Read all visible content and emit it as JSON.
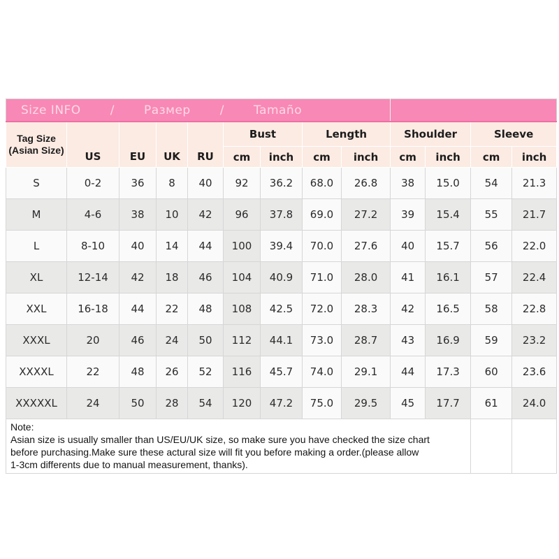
{
  "chart_data": {
    "type": "table",
    "title": "Size INFO / Размер / Tamaño",
    "columns": [
      "Tag Size (Asian Size)",
      "US",
      "EU",
      "UK",
      "RU",
      "Bust cm",
      "Bust inch",
      "Length cm",
      "Length inch",
      "Shoulder cm",
      "Shoulder inch",
      "Sleeve cm",
      "Sleeve inch"
    ],
    "rows": [
      [
        "S",
        "0-2",
        "36",
        "8",
        "40",
        "92",
        "36.2",
        "68.0",
        "26.8",
        "38",
        "15.0",
        "54",
        "21.3"
      ],
      [
        "M",
        "4-6",
        "38",
        "10",
        "42",
        "96",
        "37.8",
        "69.0",
        "27.2",
        "39",
        "15.4",
        "55",
        "21.7"
      ],
      [
        "L",
        "8-10",
        "40",
        "14",
        "44",
        "100",
        "39.4",
        "70.0",
        "27.6",
        "40",
        "15.7",
        "56",
        "22.0"
      ],
      [
        "XL",
        "12-14",
        "42",
        "18",
        "46",
        "104",
        "40.9",
        "71.0",
        "28.0",
        "41",
        "16.1",
        "57",
        "22.4"
      ],
      [
        "XXL",
        "16-18",
        "44",
        "22",
        "48",
        "108",
        "42.5",
        "72.0",
        "28.3",
        "42",
        "16.5",
        "58",
        "22.8"
      ],
      [
        "XXXL",
        "20",
        "46",
        "24",
        "50",
        "112",
        "44.1",
        "73.0",
        "28.7",
        "43",
        "16.9",
        "59",
        "23.2"
      ],
      [
        "XXXXL",
        "22",
        "48",
        "26",
        "52",
        "116",
        "45.7",
        "74.0",
        "29.1",
        "44",
        "17.3",
        "60",
        "23.6"
      ],
      [
        "XXXXXL",
        "24",
        "50",
        "28",
        "54",
        "120",
        "47.2",
        "75.0",
        "29.5",
        "45",
        "17.7",
        "61",
        "24.0"
      ]
    ]
  },
  "banner": {
    "parts": [
      "Size INFO",
      "/",
      "Размер",
      "/",
      "Tamaño"
    ]
  },
  "header": {
    "tag_size_line1": "Tag Size",
    "tag_size_line2": "(Asian Size)",
    "size_systems": [
      "US",
      "EU",
      "UK",
      "RU"
    ],
    "measure_groups": [
      {
        "label": "Bust",
        "units": [
          "cm",
          "inch"
        ]
      },
      {
        "label": "Length",
        "units": [
          "cm",
          "inch"
        ]
      },
      {
        "label": "Shoulder",
        "units": [
          "cm",
          "inch"
        ]
      },
      {
        "label": "Sleeve",
        "units": [
          "cm",
          "inch"
        ]
      }
    ]
  },
  "note": {
    "lines": [
      "Note:",
      "Asian size is usually smaller than US/EU/UK size, so make sure you have checked the size chart",
      "before purchasing.Make sure these actural size will fit you before making a order.(please allow",
      "1-3cm differents due to manual measurement, thanks)."
    ]
  },
  "colors": {
    "banner_pink": "#f888b5",
    "banner_pink_edge": "#ee6fa5",
    "banner_text": "#ffd9e6",
    "header_bg": "#fcebe3",
    "row_base": "#fafafa",
    "row_alt": "#e9e9e8",
    "grid_line": "#d6d6d6",
    "text_dark": "#2b2b2b"
  }
}
